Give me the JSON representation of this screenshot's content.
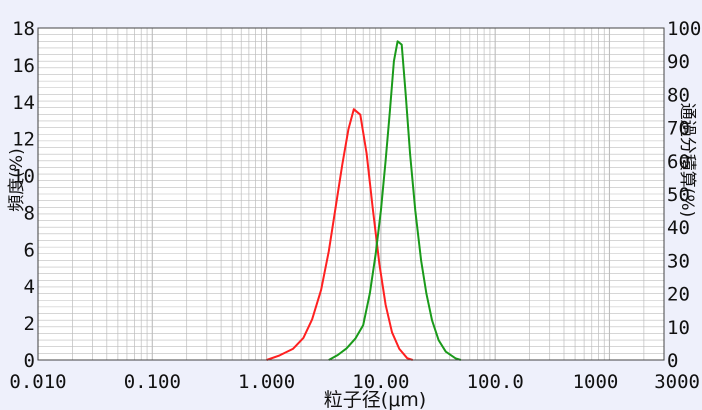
{
  "chart_data": {
    "type": "line",
    "xlabel": "粒子径(μm)",
    "ylabel_left": "頻度(%)",
    "ylabel_right": "通過分積算(%)",
    "x_scale": "log",
    "xlim": [
      0.01,
      3000
    ],
    "ylim_left": [
      0,
      18
    ],
    "ylim_right": [
      0,
      100
    ],
    "x_ticks": [
      {
        "value": 0.01,
        "label": "0.010"
      },
      {
        "value": 0.1,
        "label": "0.100"
      },
      {
        "value": 1,
        "label": "1.000"
      },
      {
        "value": 10,
        "label": "10.00"
      },
      {
        "value": 100,
        "label": "100.0"
      },
      {
        "value": 1000,
        "label": "1000"
      },
      {
        "value": 3000,
        "label": "3000"
      }
    ],
    "y_ticks_left": [
      "0",
      "2",
      "4",
      "6",
      "8",
      "10",
      "12",
      "14",
      "16",
      "18"
    ],
    "y_ticks_right": [
      "0",
      "10",
      "20",
      "30",
      "40",
      "50",
      "60",
      "70",
      "80",
      "90",
      "100"
    ],
    "grid": true,
    "colors": {
      "frequency": "#ff2020",
      "cumulative": "#1a9a1a",
      "grid": "#bdbdbd",
      "background": "#ffffff"
    },
    "series": [
      {
        "axis": "left",
        "color": "#ff2020",
        "points": [
          [
            1.0,
            0.0
          ],
          [
            1.3,
            0.25
          ],
          [
            1.7,
            0.6
          ],
          [
            2.1,
            1.2
          ],
          [
            2.5,
            2.2
          ],
          [
            3.0,
            3.8
          ],
          [
            3.5,
            5.9
          ],
          [
            4.0,
            8.2
          ],
          [
            4.6,
            10.6
          ],
          [
            5.2,
            12.5
          ],
          [
            5.8,
            13.6
          ],
          [
            6.6,
            13.3
          ],
          [
            7.5,
            11.2
          ],
          [
            8.5,
            8.2
          ],
          [
            9.7,
            5.2
          ],
          [
            11.0,
            3.0
          ],
          [
            12.5,
            1.5
          ],
          [
            14.5,
            0.6
          ],
          [
            17.0,
            0.1
          ],
          [
            19.0,
            0.0
          ]
        ]
      },
      {
        "axis": "right",
        "color": "#1a9a1a",
        "points": [
          [
            3.5,
            0.0
          ],
          [
            4.2,
            1.5
          ],
          [
            5.0,
            3.5
          ],
          [
            6.0,
            6.5
          ],
          [
            7.0,
            10.5
          ],
          [
            8.0,
            20
          ],
          [
            9.0,
            32
          ],
          [
            10.0,
            45
          ],
          [
            11.0,
            60
          ],
          [
            12.0,
            75
          ],
          [
            13.0,
            90
          ],
          [
            14.0,
            96
          ],
          [
            15.2,
            95
          ],
          [
            16.5,
            80
          ],
          [
            18.0,
            62
          ],
          [
            20.0,
            45
          ],
          [
            22.5,
            30
          ],
          [
            25.0,
            20
          ],
          [
            28.0,
            12
          ],
          [
            32.0,
            6
          ],
          [
            37.0,
            2.5
          ],
          [
            45.0,
            0.5
          ],
          [
            50.0,
            0.0
          ]
        ]
      }
    ]
  }
}
